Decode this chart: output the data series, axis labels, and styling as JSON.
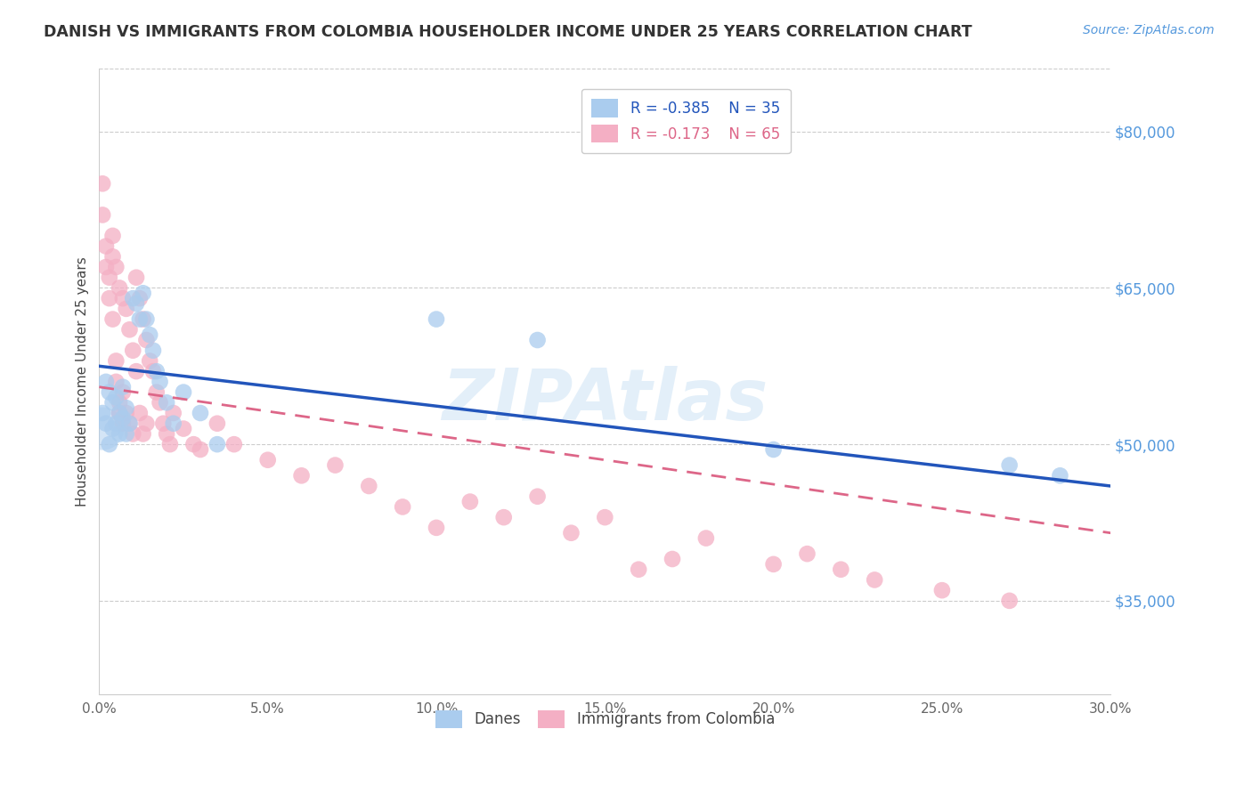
{
  "title": "DANISH VS IMMIGRANTS FROM COLOMBIA HOUSEHOLDER INCOME UNDER 25 YEARS CORRELATION CHART",
  "source": "Source: ZipAtlas.com",
  "ylabel": "Householder Income Under 25 years",
  "xmin": 0.0,
  "xmax": 0.3,
  "ymin": 26000,
  "ymax": 86000,
  "yticks": [
    35000,
    50000,
    65000,
    80000
  ],
  "ytick_labels": [
    "$35,000",
    "$50,000",
    "$65,000",
    "$80,000"
  ],
  "legend_blue_r": "R = -0.385",
  "legend_blue_n": "N = 35",
  "legend_pink_r": "R = -0.173",
  "legend_pink_n": "N = 65",
  "blue_color": "#aaccee",
  "pink_color": "#f4afc4",
  "blue_line_color": "#2255bb",
  "pink_line_color": "#dd6688",
  "watermark": "ZIPAtlas",
  "blue_line_x0": 0.0,
  "blue_line_y0": 57500,
  "blue_line_x1": 0.3,
  "blue_line_y1": 46000,
  "pink_line_x0": 0.0,
  "pink_line_y0": 55500,
  "pink_line_x1": 0.3,
  "pink_line_y1": 41500,
  "danes_x": [
    0.001,
    0.002,
    0.002,
    0.003,
    0.003,
    0.004,
    0.004,
    0.005,
    0.005,
    0.006,
    0.006,
    0.007,
    0.007,
    0.008,
    0.008,
    0.009,
    0.01,
    0.011,
    0.012,
    0.013,
    0.014,
    0.015,
    0.016,
    0.017,
    0.018,
    0.02,
    0.022,
    0.025,
    0.03,
    0.035,
    0.1,
    0.13,
    0.2,
    0.27,
    0.285
  ],
  "danes_y": [
    53000,
    52000,
    56000,
    50000,
    55000,
    51500,
    54000,
    52000,
    54500,
    51000,
    53000,
    52500,
    55500,
    51000,
    53500,
    52000,
    64000,
    63500,
    62000,
    64500,
    62000,
    60500,
    59000,
    57000,
    56000,
    54000,
    52000,
    55000,
    53000,
    50000,
    62000,
    60000,
    49500,
    48000,
    47000
  ],
  "colombia_x": [
    0.001,
    0.001,
    0.002,
    0.002,
    0.003,
    0.003,
    0.004,
    0.004,
    0.004,
    0.005,
    0.005,
    0.005,
    0.006,
    0.006,
    0.006,
    0.007,
    0.007,
    0.007,
    0.008,
    0.008,
    0.009,
    0.009,
    0.01,
    0.01,
    0.011,
    0.011,
    0.012,
    0.012,
    0.013,
    0.013,
    0.014,
    0.014,
    0.015,
    0.016,
    0.017,
    0.018,
    0.019,
    0.02,
    0.021,
    0.022,
    0.025,
    0.028,
    0.03,
    0.035,
    0.04,
    0.05,
    0.06,
    0.07,
    0.08,
    0.09,
    0.1,
    0.11,
    0.12,
    0.13,
    0.14,
    0.15,
    0.16,
    0.17,
    0.18,
    0.2,
    0.21,
    0.22,
    0.23,
    0.25,
    0.27
  ],
  "colombia_y": [
    75000,
    72000,
    69000,
    67000,
    66000,
    64000,
    62000,
    70000,
    68000,
    58000,
    56000,
    67000,
    54000,
    53000,
    65000,
    52000,
    64000,
    55000,
    63000,
    53000,
    61000,
    52000,
    59000,
    51000,
    57000,
    66000,
    53000,
    64000,
    51000,
    62000,
    60000,
    52000,
    58000,
    57000,
    55000,
    54000,
    52000,
    51000,
    50000,
    53000,
    51500,
    50000,
    49500,
    52000,
    50000,
    48500,
    47000,
    48000,
    46000,
    44000,
    42000,
    44500,
    43000,
    45000,
    41500,
    43000,
    38000,
    39000,
    41000,
    38500,
    39500,
    38000,
    37000,
    36000,
    35000
  ]
}
